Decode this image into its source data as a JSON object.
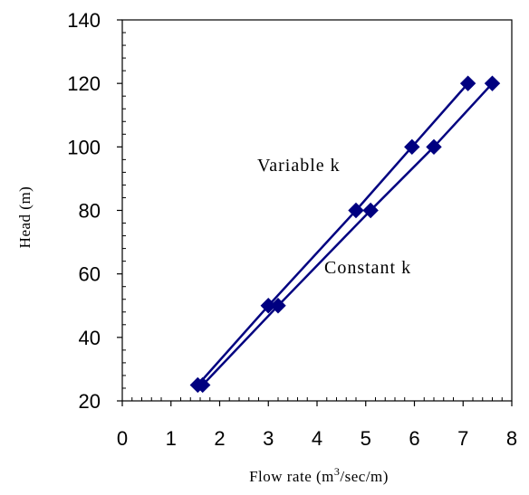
{
  "chart_data": {
    "type": "line",
    "xlabel": "Flow rate (m",
    "xlabel_sup": "3",
    "xlabel_tail": "/sec/m)",
    "ylabel": "Head (m)",
    "xlim": [
      0,
      8
    ],
    "ylim": [
      20,
      140
    ],
    "x_ticks": [
      0,
      1,
      2,
      3,
      4,
      5,
      6,
      7,
      8
    ],
    "y_ticks": [
      20,
      40,
      60,
      80,
      100,
      120,
      140
    ],
    "grid": false,
    "series_color": "#000080",
    "series": [
      {
        "x": [
          1.55,
          3.0,
          4.8,
          5.95,
          7.1
        ],
        "y": [
          25,
          50,
          80,
          100,
          120
        ]
      },
      {
        "x": [
          1.65,
          3.2,
          5.1,
          6.4,
          7.6
        ],
        "y": [
          25,
          50,
          80,
          100,
          120
        ]
      }
    ],
    "annotations": [
      {
        "text": "Variable k"
      },
      {
        "text": "Constant k"
      }
    ]
  }
}
